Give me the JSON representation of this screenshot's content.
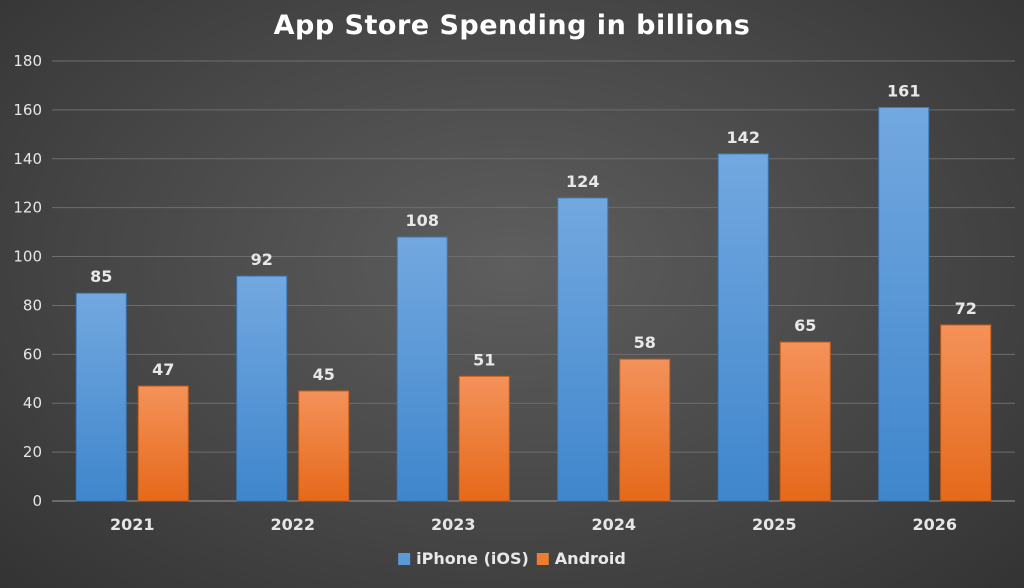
{
  "chart_data": {
    "type": "bar",
    "title": "App Store Spending in billions",
    "categories": [
      "2021",
      "2022",
      "2023",
      "2024",
      "2025",
      "2026"
    ],
    "series": [
      {
        "name": "iPhone (iOS)",
        "values": [
          85,
          92,
          108,
          124,
          142,
          161
        ],
        "color": "#5b9bd5"
      },
      {
        "name": "Android",
        "values": [
          47,
          45,
          51,
          58,
          65,
          72
        ],
        "color": "#ed7d31"
      }
    ],
    "ylim": [
      0,
      180
    ],
    "yticks": [
      0,
      20,
      40,
      60,
      80,
      100,
      120,
      140,
      160,
      180
    ],
    "grid": true,
    "legend": "bottom"
  }
}
